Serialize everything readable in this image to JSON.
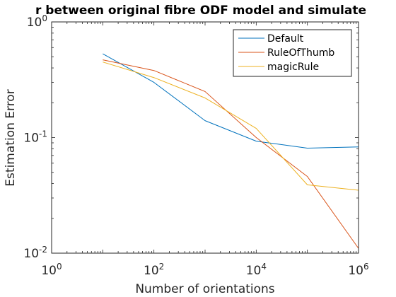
{
  "chart_data": {
    "type": "line",
    "title": "r between original fibre ODF model and simulate",
    "xlabel": "Number of orientations",
    "ylabel": "Estimation Error",
    "xscale": "log",
    "yscale": "log",
    "xlim": [
      1,
      1000000
    ],
    "ylim": [
      0.01,
      1
    ],
    "x_ticks": [
      {
        "value": 1,
        "base": "10",
        "exp": "0"
      },
      {
        "value": 100,
        "base": "10",
        "exp": "2"
      },
      {
        "value": 10000,
        "base": "10",
        "exp": "4"
      },
      {
        "value": 1000000,
        "base": "10",
        "exp": "6"
      }
    ],
    "y_ticks": [
      {
        "value": 0.01,
        "base": "10",
        "exp": "-2"
      },
      {
        "value": 0.1,
        "base": "10",
        "exp": "-1"
      },
      {
        "value": 1,
        "base": "10",
        "exp": "0"
      }
    ],
    "x": [
      10,
      100,
      1000,
      10000,
      100000,
      1000000
    ],
    "series": [
      {
        "name": "Default",
        "color": "#0072BD",
        "values": [
          0.53,
          0.3,
          0.14,
          0.093,
          0.081,
          0.083
        ]
      },
      {
        "name": "RuleOfThumb",
        "color": "#D95319",
        "values": [
          0.47,
          0.38,
          0.25,
          0.1,
          0.046,
          0.011
        ]
      },
      {
        "name": "magicRule",
        "color": "#EDB120",
        "values": [
          0.45,
          0.33,
          0.22,
          0.12,
          0.039,
          0.035
        ]
      }
    ],
    "grid": false,
    "box": true,
    "legend_position": "top-right"
  }
}
